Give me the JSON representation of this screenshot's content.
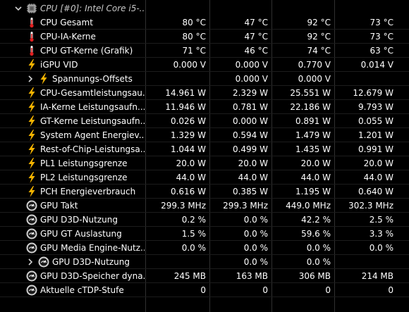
{
  "header": {
    "title": "CPU [#0]: Intel Core i5-...",
    "chevron_icon": "chevron-down-icon",
    "chip_icon": "cpu-chip-icon"
  },
  "colors": {
    "background": "#000000",
    "text": "#ffffff",
    "grid": "#303030",
    "thermometer": "#e02020",
    "lightning": "#f5b400",
    "gauge": "#d0d0d0"
  },
  "rows": [
    {
      "name": "cpu-gesamt",
      "icon": "thermometer-icon",
      "label": "CPU Gesamt",
      "current": "80 °C",
      "min": "47 °C",
      "max": "92 °C",
      "avg": "73 °C"
    },
    {
      "name": "cpu-ia-kerne",
      "icon": "thermometer-icon",
      "label": "CPU-IA-Kerne",
      "current": "80 °C",
      "min": "47 °C",
      "max": "92 °C",
      "avg": "73 °C"
    },
    {
      "name": "cpu-gt-kerne",
      "icon": "thermometer-icon",
      "label": "CPU GT-Kerne (Grafik)",
      "current": "71 °C",
      "min": "46 °C",
      "max": "74 °C",
      "avg": "63 °C"
    },
    {
      "name": "igpu-vid",
      "icon": "lightning-icon",
      "label": "iGPU VID",
      "current": "0.000 V",
      "min": "0.000 V",
      "max": "0.770 V",
      "avg": "0.014 V"
    },
    {
      "name": "spannungs-offsets",
      "icon": "lightning-icon",
      "label": "Spannungs-Offsets",
      "current": "",
      "min": "0.000 V",
      "max": "0.000 V",
      "avg": "",
      "sub": true,
      "chevron": "chevron-right-icon"
    },
    {
      "name": "cpu-gesamtleistung",
      "icon": "lightning-icon",
      "label": "CPU-Gesamtleistungsau...",
      "current": "14.961 W",
      "min": "2.329 W",
      "max": "25.551 W",
      "avg": "12.679 W"
    },
    {
      "name": "ia-kerne-leistung",
      "icon": "lightning-icon",
      "label": "IA-Kerne Leistungsaufn...",
      "current": "11.946 W",
      "min": "0.781 W",
      "max": "22.186 W",
      "avg": "9.793 W"
    },
    {
      "name": "gt-kerne-leistung",
      "icon": "lightning-icon",
      "label": "GT-Kerne Leistungsaufn...",
      "current": "0.026 W",
      "min": "0.000 W",
      "max": "0.891 W",
      "avg": "0.055 W"
    },
    {
      "name": "system-agent-energie",
      "icon": "lightning-icon",
      "label": "System Agent Energiev...",
      "current": "1.329 W",
      "min": "0.594 W",
      "max": "1.479 W",
      "avg": "1.201 W"
    },
    {
      "name": "rest-of-chip-leistung",
      "icon": "lightning-icon",
      "label": "Rest-of-Chip-Leistungsa...",
      "current": "1.044 W",
      "min": "0.499 W",
      "max": "1.435 W",
      "avg": "0.991 W"
    },
    {
      "name": "pl1-leistungsgrenze",
      "icon": "lightning-icon",
      "label": "PL1 Leistungsgrenze",
      "current": "20.0 W",
      "min": "20.0 W",
      "max": "20.0 W",
      "avg": "20.0 W"
    },
    {
      "name": "pl2-leistungsgrenze",
      "icon": "lightning-icon",
      "label": "PL2 Leistungsgrenze",
      "current": "44.0 W",
      "min": "44.0 W",
      "max": "44.0 W",
      "avg": "44.0 W"
    },
    {
      "name": "pch-energieverbrauch",
      "icon": "lightning-icon",
      "label": "PCH Energieverbrauch",
      "current": "0.616 W",
      "min": "0.385 W",
      "max": "1.195 W",
      "avg": "0.640 W"
    },
    {
      "name": "gpu-takt",
      "icon": "gauge-icon",
      "label": "GPU Takt",
      "current": "299.3 MHz",
      "min": "299.3 MHz",
      "max": "449.0 MHz",
      "avg": "302.3 MHz"
    },
    {
      "name": "gpu-d3d-nutzung",
      "icon": "gauge-icon",
      "label": "GPU D3D-Nutzung",
      "current": "0.2 %",
      "min": "0.0 %",
      "max": "42.2 %",
      "avg": "2.5 %"
    },
    {
      "name": "gpu-gt-auslastung",
      "icon": "gauge-icon",
      "label": "GPU GT Auslastung",
      "current": "1.5 %",
      "min": "0.0 %",
      "max": "59.6 %",
      "avg": "3.3 %"
    },
    {
      "name": "gpu-media-engine",
      "icon": "gauge-icon",
      "label": "GPU Media Engine-Nutz...",
      "current": "0.0 %",
      "min": "0.0 %",
      "max": "0.0 %",
      "avg": "0.0 %"
    },
    {
      "name": "gpu-d3d-nutzung-sub",
      "icon": "gauge-icon",
      "label": "GPU D3D-Nutzung",
      "current": "",
      "min": "0.0 %",
      "max": "0.0 %",
      "avg": "",
      "sub": true,
      "chevron": "chevron-right-icon"
    },
    {
      "name": "gpu-d3d-speicher",
      "icon": "gauge-icon",
      "label": "GPU D3D-Speicher dyna...",
      "current": "245 MB",
      "min": "163 MB",
      "max": "306 MB",
      "avg": "214 MB"
    },
    {
      "name": "aktuelle-ctdp-stufe",
      "icon": "gauge-icon",
      "label": "Aktuelle cTDP-Stufe",
      "current": "0",
      "min": "0",
      "max": "0",
      "avg": "0"
    }
  ]
}
